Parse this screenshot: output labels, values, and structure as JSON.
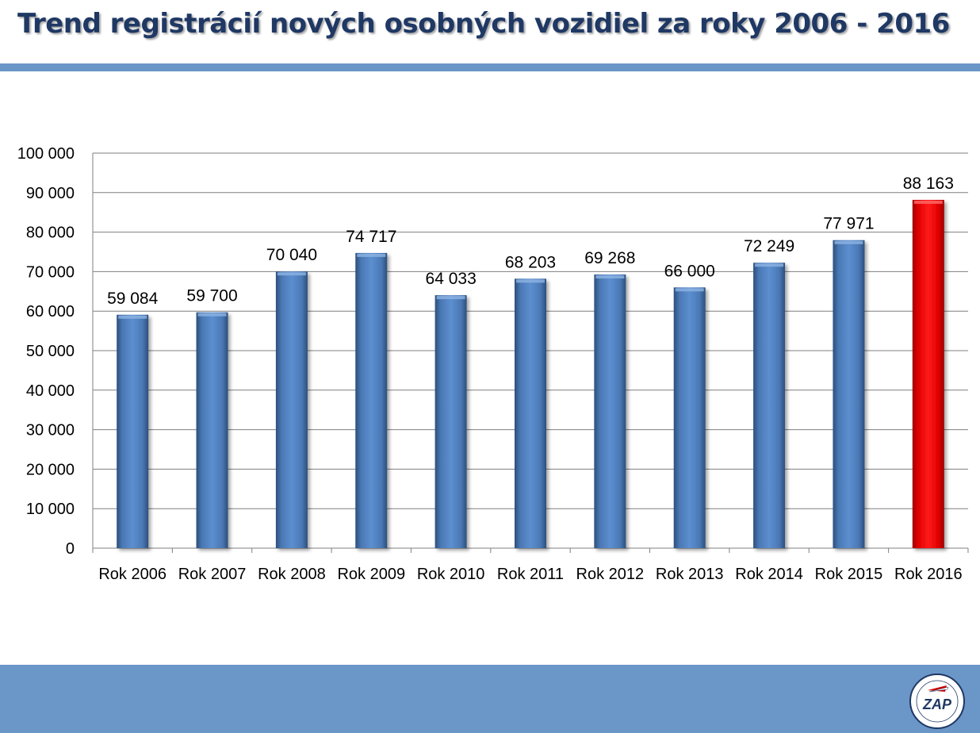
{
  "slide": {
    "title": "Trend registrácií nových osobných vozidiel za roky 2006 - 2016"
  },
  "colors": {
    "title": "#1f3864",
    "rule": "#6b96c8",
    "bar_default": "#4f81bd",
    "bar_highlight": "#ff0000"
  },
  "logo": {
    "text": "ZAP"
  },
  "chart_data": {
    "type": "bar",
    "title": "",
    "xlabel": "",
    "ylabel": "",
    "categories": [
      "Rok 2006",
      "Rok 2007",
      "Rok 2008",
      "Rok 2009",
      "Rok 2010",
      "Rok 2011",
      "Rok 2012",
      "Rok 2013",
      "Rok 2014",
      "Rok 2015",
      "Rok 2016"
    ],
    "values": [
      59084,
      59700,
      70040,
      74717,
      64033,
      68203,
      69268,
      66000,
      72249,
      77971,
      88163
    ],
    "data_labels": [
      "59 084",
      "59 700",
      "70 040",
      "74 717",
      "64 033",
      "68 203",
      "69 268",
      "66 000",
      "72 249",
      "77 971",
      "88 163"
    ],
    "highlight_index": 10,
    "ylim": [
      0,
      100000
    ],
    "yticks": [
      0,
      10000,
      20000,
      30000,
      40000,
      50000,
      60000,
      70000,
      80000,
      90000,
      100000
    ],
    "ytick_labels": [
      "0",
      "10 000",
      "20 000",
      "30 000",
      "40 000",
      "50 000",
      "60 000",
      "70 000",
      "80 000",
      "90 000",
      "100 000"
    ],
    "grid": true,
    "legend": "none"
  }
}
